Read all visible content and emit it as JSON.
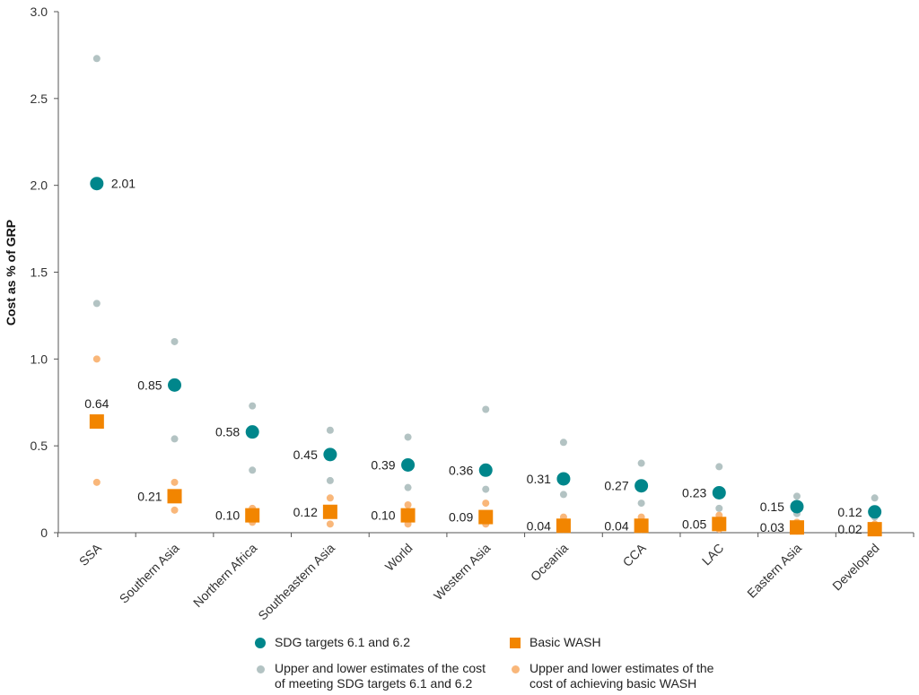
{
  "colors": {
    "sdg": "#00868b",
    "basic": "#f28500",
    "sdg_range": "#b3c3c3",
    "basic_range": "#f9b77a",
    "axis": "#555555"
  },
  "legend": {
    "sdg_label": "SDG targets 6.1 and 6.2",
    "basic_label": "Basic WASH",
    "sdg_range_label_line1": "Upper and lower estimates of the cost",
    "sdg_range_label_line2": "of meeting SDG targets 6.1 and 6.2",
    "basic_range_label_line1": "Upper and lower estimates of the",
    "basic_range_label_line2": "cost of achieving basic WASH"
  },
  "chart_data": {
    "type": "scatter",
    "title": "",
    "xlabel": "",
    "ylabel": "Cost as % of GRP",
    "ylim": [
      0,
      3.0
    ],
    "yticks": [
      "0",
      "0.5",
      "1.0",
      "1.5",
      "2.0",
      "2.5",
      "3.0"
    ],
    "ytick_values": [
      0,
      0.5,
      1.0,
      1.5,
      2.0,
      2.5,
      3.0
    ],
    "categories": [
      "SSA",
      "Southern Asia",
      "Northern Africa",
      "Southeastern Asia",
      "World",
      "Western Asia",
      "Oceania",
      "CCA",
      "LAC",
      "Eastern Asia",
      "Developed"
    ],
    "series": [
      {
        "name": "SDG targets 6.1 and 6.2",
        "values": [
          2.01,
          0.85,
          0.58,
          0.45,
          0.39,
          0.36,
          0.31,
          0.27,
          0.23,
          0.15,
          0.12
        ],
        "labels": [
          "2.01",
          "0.85",
          "0.58",
          "0.45",
          "0.39",
          "0.36",
          "0.31",
          "0.27",
          "0.23",
          "0.15",
          "0.12"
        ]
      },
      {
        "name": "Basic WASH",
        "values": [
          0.64,
          0.21,
          0.1,
          0.12,
          0.1,
          0.09,
          0.04,
          0.04,
          0.05,
          0.03,
          0.02
        ],
        "labels": [
          "0.64",
          "0.21",
          "0.10",
          "0.12",
          "0.10",
          "0.09",
          "0.04",
          "0.04",
          "0.05",
          "0.03",
          "0.02"
        ]
      },
      {
        "name": "Upper and lower estimates of the cost of meeting SDG targets 6.1 and 6.2",
        "upper": [
          2.73,
          1.1,
          0.73,
          0.59,
          0.55,
          0.71,
          0.52,
          0.4,
          0.38,
          0.21,
          0.2
        ],
        "lower": [
          1.32,
          0.54,
          0.36,
          0.3,
          0.26,
          0.25,
          0.22,
          0.17,
          0.14,
          0.11,
          0.09
        ]
      },
      {
        "name": "Upper and lower estimates of the cost of achieving basic WASH",
        "upper": [
          1.0,
          0.29,
          0.14,
          0.2,
          0.16,
          0.17,
          0.09,
          0.09,
          0.1,
          0.06,
          0.05
        ],
        "lower": [
          0.29,
          0.13,
          0.06,
          0.05,
          0.05,
          0.05,
          0.02,
          0.02,
          0.02,
          0.01,
          0.01
        ]
      }
    ]
  }
}
